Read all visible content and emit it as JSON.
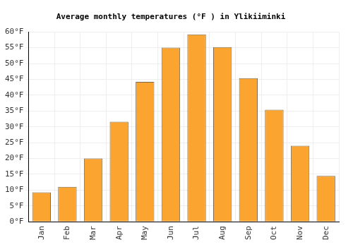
{
  "chart_data": {
    "type": "bar",
    "title": "Average monthly temperatures (°F ) in Ylikiiminki",
    "categories": [
      "Jan",
      "Feb",
      "Mar",
      "Apr",
      "May",
      "Jun",
      "Jul",
      "Aug",
      "Sep",
      "Oct",
      "Nov",
      "Dec"
    ],
    "values": [
      9.3,
      11,
      20,
      31.6,
      44.2,
      55,
      59.2,
      55.2,
      45.4,
      35.4,
      24,
      14.5
    ],
    "color": "#fba430",
    "ylim": [
      0,
      60
    ],
    "yticks": [
      {
        "value": 0,
        "label": "0°F"
      },
      {
        "value": 5,
        "label": "5°F"
      },
      {
        "value": 10,
        "label": "10°F"
      },
      {
        "value": 15,
        "label": "15°F"
      },
      {
        "value": 20,
        "label": "20°F"
      },
      {
        "value": 25,
        "label": "25°F"
      },
      {
        "value": 30,
        "label": "30°F"
      },
      {
        "value": 35,
        "label": "35°F"
      },
      {
        "value": 40,
        "label": "40°F"
      },
      {
        "value": 45,
        "label": "45°F"
      },
      {
        "value": 50,
        "label": "50°F"
      },
      {
        "value": 55,
        "label": "55°F"
      },
      {
        "value": 60,
        "label": "60°F"
      }
    ],
    "grid": true
  }
}
